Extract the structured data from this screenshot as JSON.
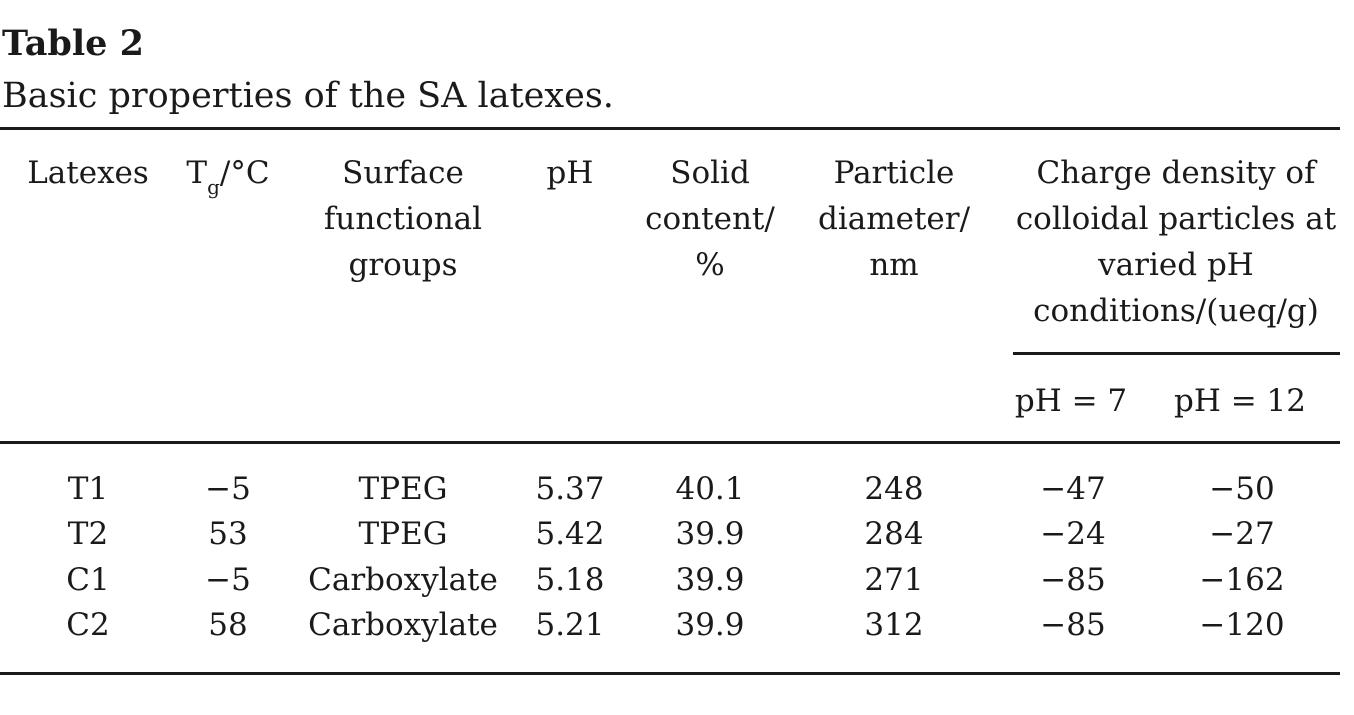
{
  "caption": {
    "label": "Table 2",
    "title": "Basic properties of the SA latexes."
  },
  "table": {
    "headers": {
      "latexes": "Latexes",
      "tg_main": "T",
      "tg_sub": "g",
      "tg_unit": "/°C",
      "surface": [
        "Surface",
        "functional",
        "groups"
      ],
      "ph": "pH",
      "solid": [
        "Solid",
        "content/",
        "%"
      ],
      "particle": [
        "Particle",
        "diameter/",
        "nm"
      ],
      "charge": [
        "Charge density of",
        "colloidal particles at",
        "varied pH",
        "conditions/(ueq/g)"
      ],
      "ph7": "pH = 7",
      "ph12": "pH = 12"
    },
    "rows": [
      {
        "latex": "T1",
        "tg": "−5",
        "surface": "TPEG",
        "ph": "5.37",
        "solid": "40.1",
        "diameter": "248",
        "charge_ph7": "−47",
        "charge_ph12": "−50"
      },
      {
        "latex": "T2",
        "tg": "53",
        "surface": "TPEG",
        "ph": "5.42",
        "solid": "39.9",
        "diameter": "284",
        "charge_ph7": "−24",
        "charge_ph12": "−27"
      },
      {
        "latex": "C1",
        "tg": "−5",
        "surface": "Carboxylate",
        "ph": "5.18",
        "solid": "39.9",
        "diameter": "271",
        "charge_ph7": "−85",
        "charge_ph12": "−162"
      },
      {
        "latex": "C2",
        "tg": "58",
        "surface": "Carboxylate",
        "ph": "5.21",
        "solid": "39.9",
        "diameter": "312",
        "charge_ph7": "−85",
        "charge_ph12": "−120"
      }
    ]
  }
}
